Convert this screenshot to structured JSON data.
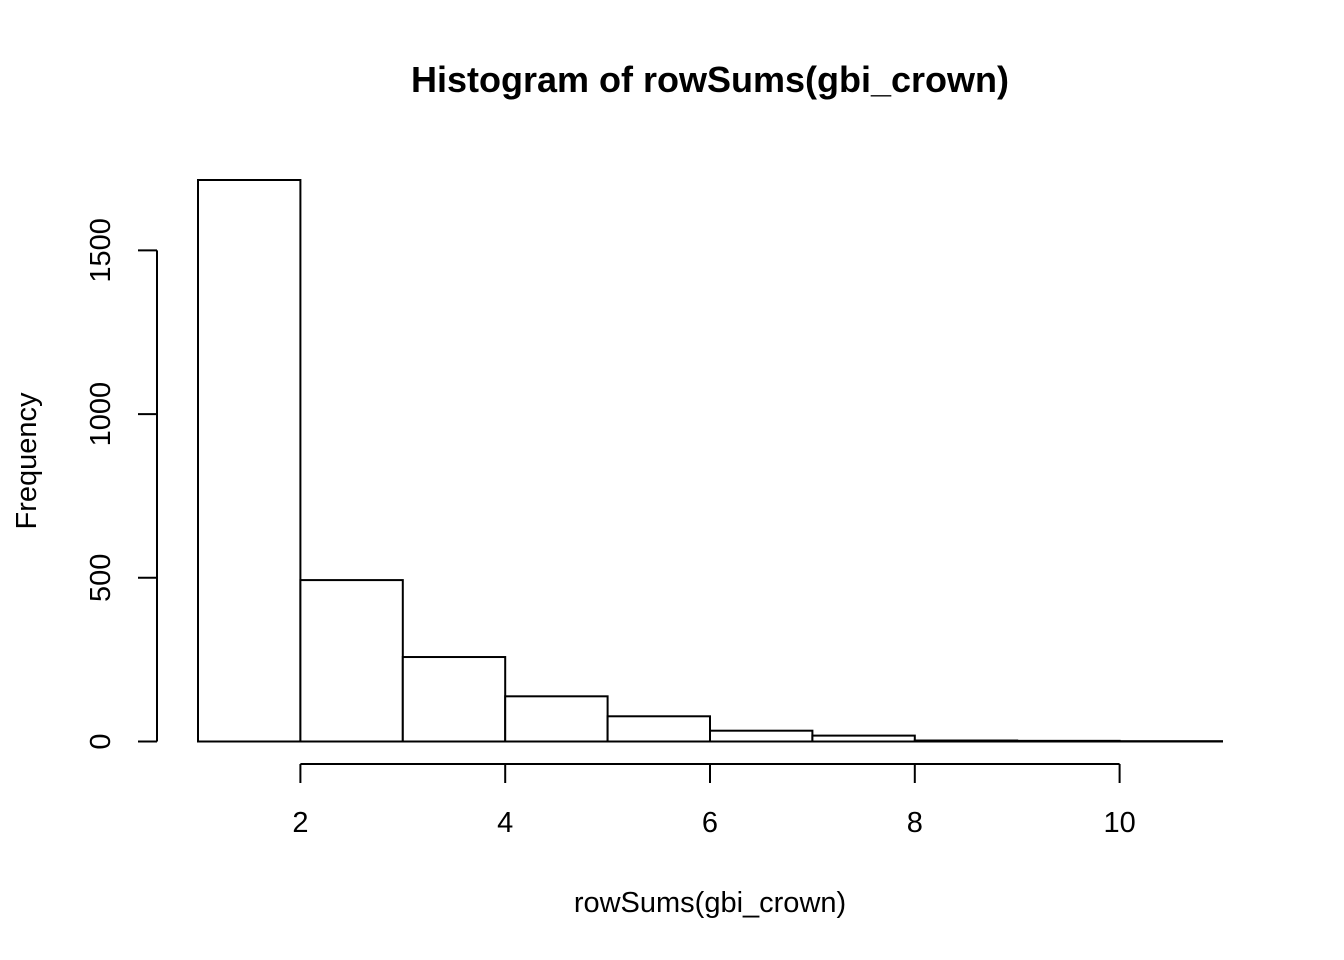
{
  "chart_data": {
    "type": "bar",
    "title": "Histogram of rowSums(gbi_crown)",
    "xlabel": "rowSums(gbi_crown)",
    "ylabel": "Frequency",
    "bins": [
      {
        "x0": 1,
        "x1": 2,
        "value": 1715
      },
      {
        "x0": 2,
        "x1": 3,
        "value": 493
      },
      {
        "x0": 3,
        "x1": 4,
        "value": 258
      },
      {
        "x0": 4,
        "x1": 5,
        "value": 138
      },
      {
        "x0": 5,
        "x1": 6,
        "value": 77
      },
      {
        "x0": 6,
        "x1": 7,
        "value": 33
      },
      {
        "x0": 7,
        "x1": 8,
        "value": 18
      },
      {
        "x0": 8,
        "x1": 9,
        "value": 3
      },
      {
        "x0": 9,
        "x1": 10,
        "value": 2
      },
      {
        "x0": 10,
        "x1": 11,
        "value": 1
      }
    ],
    "xlim": [
      1,
      11
    ],
    "ylim": [
      0,
      1715
    ],
    "xticks": [
      2,
      4,
      6,
      8,
      10
    ],
    "xtick_labels": [
      "2",
      "4",
      "6",
      "8",
      "10"
    ],
    "yticks": [
      0,
      500,
      1000,
      1500
    ],
    "ytick_labels": [
      "0",
      "500",
      "1000",
      "1500"
    ],
    "grid": false,
    "bar_fill": "#ffffff",
    "bar_stroke": "#000000"
  }
}
